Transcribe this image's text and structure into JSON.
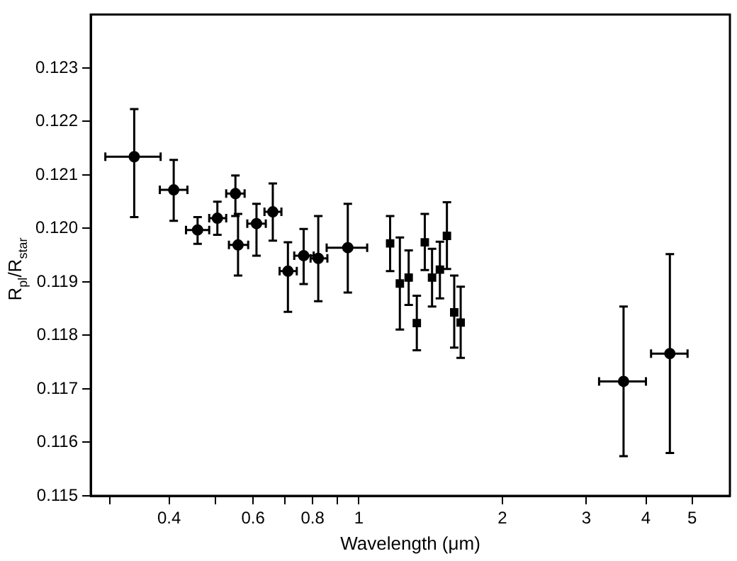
{
  "chart_data": {
    "type": "scatter",
    "xlabel": "Wavelength (μm)",
    "ylabel": "R$_{pl}$/R$_{star}$",
    "log": "x",
    "grid": false,
    "legend": false,
    "xlim": [
      0.274,
      6.0
    ],
    "xticks": [
      {
        "value": 0.3,
        "label": null
      },
      0.4,
      {
        "value": 0.5,
        "label": null
      },
      0.6,
      {
        "value": 0.7,
        "label": null
      },
      0.8,
      {
        "value": 0.9,
        "label": null
      },
      1,
      2,
      3,
      4,
      5
    ],
    "ylim": [
      0.115,
      0.124
    ],
    "yticks": [
      0.115,
      0.116,
      0.117,
      0.118,
      0.119,
      {
        "value": 0.12,
        "label": "0.120"
      },
      0.121,
      0.122,
      0.123
    ],
    "series": [
      {
        "color": "#000000",
        "marker": "circle",
        "x": [
          0.338,
          0.409,
          0.459,
          0.505,
          0.551,
          0.558,
          0.61,
          0.66,
          0.71,
          0.766,
          0.822,
          0.948,
          3.59,
          4.49
        ],
        "values": [
          0.12134,
          0.12072,
          0.11997,
          0.12019,
          0.12065,
          0.11969,
          0.12009,
          0.12031,
          0.1192,
          0.11949,
          0.11944,
          0.11964,
          0.11714,
          0.11766
        ],
        "errors": [
          [
            0.12021,
            0.12223
          ],
          [
            0.12014,
            0.12128
          ],
          [
            0.11971,
            0.12021
          ],
          [
            0.11988,
            0.1205
          ],
          [
            0.12023,
            0.12099
          ],
          [
            0.11912,
            0.12027
          ],
          [
            0.11949,
            0.12046
          ],
          [
            0.11977,
            0.12084
          ],
          [
            0.11844,
            0.11974
          ],
          [
            0.11896,
            0.11999
          ],
          [
            0.11864,
            0.12023
          ],
          [
            0.1188,
            0.12046
          ],
          [
            0.11574,
            0.11854
          ],
          [
            0.1158,
            0.11952
          ]
        ],
        "xerrors": [
          [
            0.294,
            0.384
          ],
          [
            0.3825,
            0.437
          ],
          [
            0.434,
            0.4855
          ],
          [
            0.4855,
            0.527
          ],
          [
            0.527,
            0.576
          ],
          [
            0.534,
            0.586
          ],
          [
            0.5835,
            0.638
          ],
          [
            0.634,
            0.688
          ],
          [
            0.682,
            0.741
          ],
          [
            0.732,
            0.804
          ],
          [
            0.792,
            0.859
          ],
          [
            0.856,
            1.041
          ],
          [
            3.19,
            4.0
          ],
          [
            4.1,
            4.89
          ]
        ]
      },
      {
        "color": "#000000",
        "marker": "square",
        "x": [
          1.163,
          1.219,
          1.272,
          1.323,
          1.375,
          1.424,
          1.479,
          1.53,
          1.585,
          1.635
        ],
        "values": [
          0.11972,
          0.11897,
          0.11908,
          0.11823,
          0.11974,
          0.11908,
          0.11923,
          0.11986,
          0.11843,
          0.11824
        ],
        "errors": [
          [
            0.1192,
            0.12023
          ],
          [
            0.11811,
            0.11983
          ],
          [
            0.11857,
            0.11959
          ],
          [
            0.11772,
            0.11874
          ],
          [
            0.11922,
            0.12027
          ],
          [
            0.11854,
            0.11962
          ],
          [
            0.11869,
            0.11975
          ],
          [
            0.11924,
            0.12049
          ],
          [
            0.11777,
            0.11912
          ],
          [
            0.11758,
            0.11891
          ]
        ]
      }
    ]
  }
}
